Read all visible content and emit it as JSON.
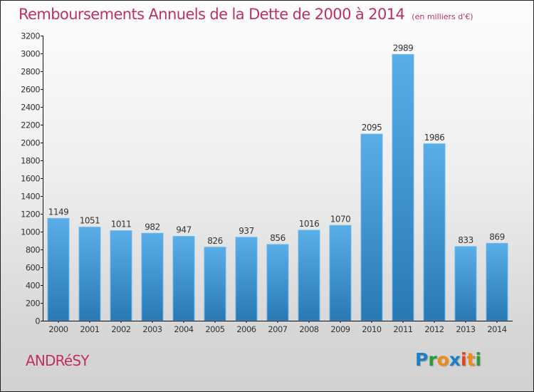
{
  "header": {
    "title": "Remboursements Annuels de la Dette de 2000 à 2014",
    "unit_note": "(en milliers d'€)"
  },
  "footer": {
    "city": "ANDRéSY",
    "logo_letters": [
      {
        "char": "P",
        "color": "#1e7fc8"
      },
      {
        "char": "r",
        "color": "#2a9a3a"
      },
      {
        "char": "o",
        "color": "#f28a1a"
      },
      {
        "char": "x",
        "color": "#1e7fc8"
      },
      {
        "char": "i",
        "color": "#e8431c"
      },
      {
        "char": "t",
        "color": "#f28a1a"
      },
      {
        "char": "i",
        "color": "#2a9a3a"
      }
    ]
  },
  "colors": {
    "accent": "#c0305f",
    "bar_top": "#5aaee8",
    "bar_bottom": "#2878b4",
    "axis": "#111111",
    "tick_text": "#333333"
  },
  "chart_data": {
    "type": "bar",
    "title": "Remboursements Annuels de la Dette de 2000 à 2014",
    "subtitle": "(en milliers d'€)",
    "xlabel": "",
    "ylabel": "",
    "categories": [
      "2000",
      "2001",
      "2002",
      "2003",
      "2004",
      "2005",
      "2006",
      "2007",
      "2008",
      "2009",
      "2010",
      "2011",
      "2012",
      "2013",
      "2014"
    ],
    "values": [
      1149,
      1051,
      1011,
      982,
      947,
      826,
      937,
      856,
      1016,
      1070,
      2095,
      2989,
      1986,
      833,
      869
    ],
    "data_labels": [
      "1149",
      "1051",
      "1011",
      "982",
      "947",
      "826",
      "937",
      "856",
      "1016",
      "1070",
      "2095",
      "2989",
      "1986",
      "833",
      "869"
    ],
    "ylim": [
      0,
      3200
    ],
    "yticks": [
      0,
      200,
      400,
      600,
      800,
      1000,
      1200,
      1400,
      1600,
      1800,
      2000,
      2200,
      2400,
      2600,
      2800,
      3000,
      3200
    ],
    "grid": false,
    "legend": "none"
  }
}
